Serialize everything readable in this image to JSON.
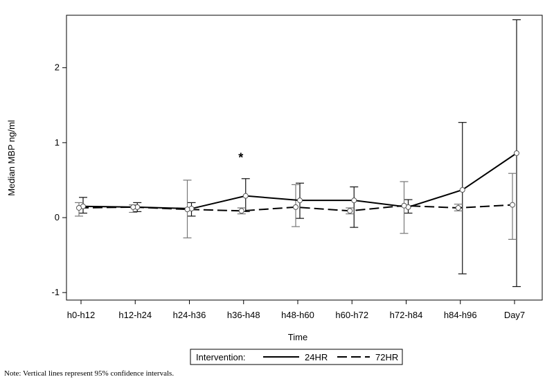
{
  "chart_data": {
    "type": "line",
    "xlabel": "Time",
    "ylabel": "Median MBP ng/ml",
    "categories": [
      "h0-h12",
      "h12-h24",
      "h24-h36",
      "h36-h48",
      "h48-h60",
      "h60-h72",
      "h72-h84",
      "h84-h96",
      "Day7"
    ],
    "ylim": [
      -1.1,
      2.7
    ],
    "yticks": [
      -1,
      0,
      1,
      2
    ],
    "grid": false,
    "annotation": {
      "text": "*",
      "category": "h36-h48",
      "y": 0.8
    },
    "series": [
      {
        "name": "24HR",
        "style": "solid",
        "color": "#000000",
        "errorbar_color": "#000000",
        "values": [
          0.15,
          0.14,
          0.12,
          0.29,
          0.23,
          0.23,
          0.14,
          0.37,
          0.86
        ],
        "ci_low": [
          0.06,
          0.08,
          0.02,
          0.08,
          -0.01,
          -0.13,
          0.06,
          -0.75,
          -0.92
        ],
        "ci_high": [
          0.27,
          0.2,
          0.2,
          0.52,
          0.46,
          0.41,
          0.24,
          1.27,
          2.64
        ]
      },
      {
        "name": "72HR",
        "style": "dashed",
        "color": "#000000",
        "errorbar_color": "#000000",
        "values": [
          0.13,
          0.14,
          0.11,
          0.09,
          0.14,
          0.09,
          0.16,
          0.13,
          0.17
        ],
        "ci_low": [
          0.02,
          0.07,
          -0.27,
          0.05,
          -0.12,
          0.05,
          -0.21,
          0.09,
          -0.29
        ],
        "ci_high": [
          0.2,
          0.17,
          0.5,
          0.13,
          0.44,
          0.13,
          0.48,
          0.18,
          0.59
        ]
      }
    ],
    "legend": {
      "title": "Intervention:",
      "placement": "bottom-center"
    }
  },
  "note": "Note: Vertical lines represent 95% confidence intervals."
}
